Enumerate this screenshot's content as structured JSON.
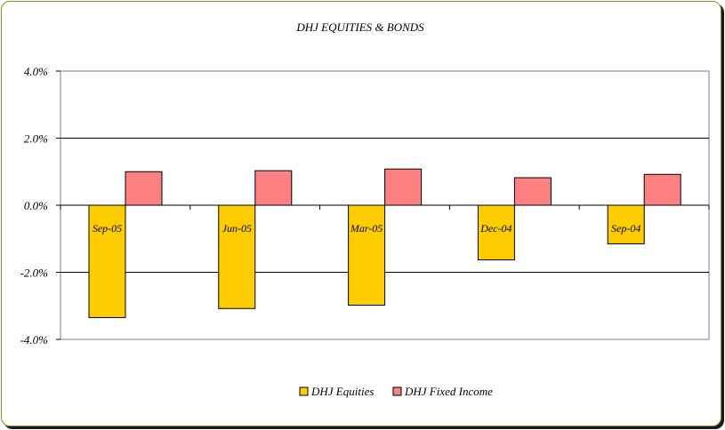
{
  "chart_data": {
    "type": "bar",
    "title": "DHJ EQUITIES & BONDS",
    "categories": [
      "Sep-05",
      "Jun-05",
      "Mar-05",
      "Dec-04",
      "Sep-04"
    ],
    "series": [
      {
        "name": "DHJ Equities",
        "color": "#ffcc00",
        "values": [
          -3.35,
          -3.08,
          -2.98,
          -1.63,
          -1.15
        ]
      },
      {
        "name": "DHJ Fixed Income",
        "color": "#ff8080",
        "values": [
          1.0,
          1.03,
          1.08,
          0.82,
          0.92
        ]
      }
    ],
    "y_ticks": [
      "4.0%",
      "2.0%",
      "0.0%",
      "-2.0%",
      "-4.0%"
    ],
    "y_tick_values": [
      4,
      2,
      0,
      -2,
      -4
    ],
    "ylim": [
      -4,
      4
    ],
    "grid": true,
    "legend_position": "bottom"
  }
}
